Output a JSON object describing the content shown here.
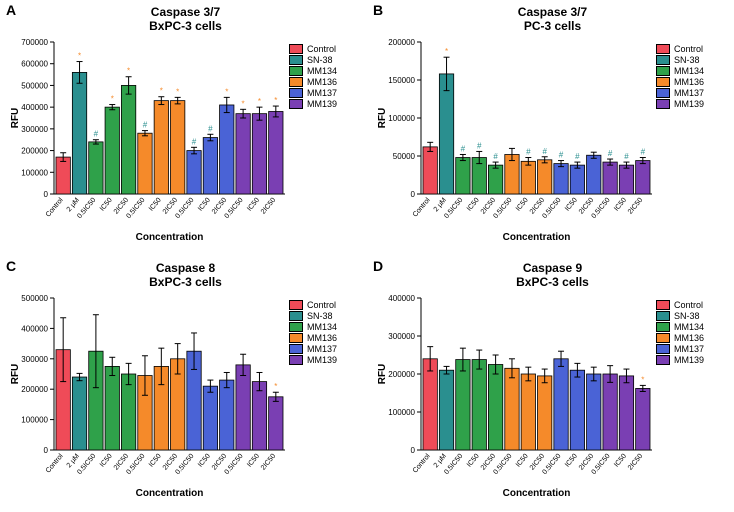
{
  "global": {
    "x_labels": [
      "Control",
      "2 μM",
      "0.5IC50",
      "IC50",
      "2IC50",
      "0.5IC50",
      "IC50",
      "2IC50",
      "0.5IC50",
      "IC50",
      "2IC50",
      "0.5IC50",
      "IC50",
      "2IC50"
    ],
    "series": [
      {
        "name": "Control",
        "color": "#ef4b58"
      },
      {
        "name": "SN-38",
        "color": "#2a8f8f"
      },
      {
        "name": "MM134",
        "color": "#2fa14a"
      },
      {
        "name": "MM136",
        "color": "#f58a2a"
      },
      {
        "name": "MM137",
        "color": "#4a63d6"
      },
      {
        "name": "MM139",
        "color": "#7a3fb3"
      }
    ],
    "bar_series_index": [
      0,
      1,
      2,
      2,
      2,
      3,
      3,
      3,
      4,
      4,
      4,
      5,
      5,
      5
    ],
    "ylabel": "RFU",
    "xlabel": "Concentration",
    "label_fontsize": 10,
    "background_color": "#ffffff",
    "sig_markers": {
      "star": "*",
      "hash": "#"
    },
    "sig_colors": {
      "star": "#f58a2a",
      "hash": "#2a8f8f"
    }
  },
  "panels": {
    "A": {
      "letter": "A",
      "title_l1": "Caspase 3/7",
      "title_l2": "BxPC-3 cells",
      "ylim": [
        0,
        700000
      ],
      "ytick_step": 100000,
      "values": [
        170000,
        560000,
        240000,
        400000,
        500000,
        280000,
        430000,
        430000,
        200000,
        260000,
        410000,
        370000,
        370000,
        380000
      ],
      "err": [
        20000,
        50000,
        10000,
        12000,
        40000,
        12000,
        18000,
        15000,
        15000,
        15000,
        35000,
        20000,
        30000,
        25000
      ],
      "sig": [
        "",
        "star",
        "hash",
        "star",
        "star",
        "hash",
        "star",
        "star",
        "hash",
        "hash",
        "star",
        "star",
        "star",
        "star"
      ]
    },
    "B": {
      "letter": "B",
      "title_l1": "Caspase 3/7",
      "title_l2": "PC-3 cells",
      "ylim": [
        0,
        200000
      ],
      "ytick_step": 50000,
      "values": [
        62000,
        158000,
        48000,
        48000,
        38000,
        52000,
        43000,
        45000,
        40000,
        38000,
        51000,
        42000,
        38000,
        44000
      ],
      "err": [
        6000,
        22000,
        4000,
        8000,
        4000,
        8000,
        5000,
        4000,
        4000,
        4000,
        4000,
        4000,
        4000,
        4000
      ],
      "sig": [
        "",
        "star",
        "hash",
        "hash",
        "hash",
        "",
        "hash",
        "hash",
        "hash",
        "hash",
        "",
        "hash",
        "hash",
        "hash"
      ]
    },
    "C": {
      "letter": "C",
      "title_l1": "Caspase 8",
      "title_l2": "BxPC-3 cells",
      "ylim": [
        0,
        500000
      ],
      "ytick_step": 100000,
      "values": [
        330000,
        240000,
        325000,
        275000,
        250000,
        245000,
        275000,
        300000,
        325000,
        210000,
        230000,
        280000,
        225000,
        175000
      ],
      "err": [
        105000,
        12000,
        120000,
        30000,
        35000,
        65000,
        60000,
        50000,
        60000,
        20000,
        25000,
        35000,
        30000,
        15000
      ],
      "sig": [
        "",
        "",
        "",
        "",
        "",
        "",
        "",
        "",
        "",
        "",
        "",
        "",
        "",
        "star"
      ]
    },
    "D": {
      "letter": "D",
      "title_l1": "Caspase 9",
      "title_l2": "BxPC-3 cells",
      "ylim": [
        0,
        400000
      ],
      "ytick_step": 100000,
      "values": [
        240000,
        210000,
        238000,
        238000,
        225000,
        215000,
        200000,
        195000,
        240000,
        210000,
        200000,
        200000,
        195000,
        162000
      ],
      "err": [
        32000,
        10000,
        30000,
        25000,
        25000,
        25000,
        18000,
        18000,
        20000,
        18000,
        18000,
        22000,
        18000,
        8000
      ],
      "sig": [
        "",
        "",
        "",
        "",
        "",
        "",
        "",
        "",
        "",
        "",
        "",
        "",
        "",
        "star"
      ]
    }
  }
}
